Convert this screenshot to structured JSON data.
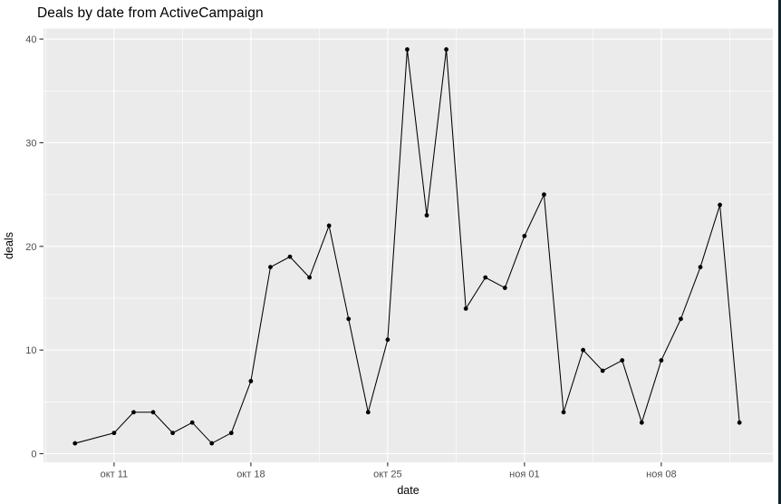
{
  "title": "Deals by date from ActiveCampaign",
  "chart_data": {
    "type": "line",
    "title": "Deals by date from ActiveCampaign",
    "xlabel": "date",
    "ylabel": "deals",
    "legend": "none",
    "grid": true,
    "ylim": [
      0,
      40
    ],
    "y_ticks": [
      0,
      10,
      20,
      30,
      40
    ],
    "y_minor_ticks": [
      5,
      15,
      25,
      35
    ],
    "x_ticks": [
      {
        "label": "окт 11",
        "day": 2
      },
      {
        "label": "окт 18",
        "day": 9
      },
      {
        "label": "окт 25",
        "day": 16
      },
      {
        "label": "ноя 01",
        "day": 23
      },
      {
        "label": "ноя 08",
        "day": 30
      }
    ],
    "points": [
      {
        "date": "окт 09",
        "day": 0,
        "value": 1
      },
      {
        "date": "окт 11",
        "day": 2,
        "value": 2
      },
      {
        "date": "окт 12",
        "day": 3,
        "value": 4
      },
      {
        "date": "окт 13",
        "day": 4,
        "value": 4
      },
      {
        "date": "окт 14",
        "day": 5,
        "value": 2
      },
      {
        "date": "окт 15",
        "day": 6,
        "value": 3
      },
      {
        "date": "окт 16",
        "day": 7,
        "value": 1
      },
      {
        "date": "окт 17",
        "day": 8,
        "value": 2
      },
      {
        "date": "окт 18",
        "day": 9,
        "value": 7
      },
      {
        "date": "окт 19",
        "day": 10,
        "value": 18
      },
      {
        "date": "окт 20",
        "day": 11,
        "value": 19
      },
      {
        "date": "окт 21",
        "day": 12,
        "value": 17
      },
      {
        "date": "окт 22",
        "day": 13,
        "value": 22
      },
      {
        "date": "окт 23",
        "day": 14,
        "value": 13
      },
      {
        "date": "окт 24",
        "day": 15,
        "value": 4
      },
      {
        "date": "окт 25",
        "day": 16,
        "value": 11
      },
      {
        "date": "окт 26",
        "day": 17,
        "value": 39
      },
      {
        "date": "окт 27",
        "day": 18,
        "value": 23
      },
      {
        "date": "окт 28",
        "day": 19,
        "value": 39
      },
      {
        "date": "окт 29",
        "day": 20,
        "value": 14
      },
      {
        "date": "окт 30",
        "day": 21,
        "value": 17
      },
      {
        "date": "окт 31",
        "day": 22,
        "value": 16
      },
      {
        "date": "ноя 01",
        "day": 23,
        "value": 21
      },
      {
        "date": "ноя 02",
        "day": 24,
        "value": 25
      },
      {
        "date": "ноя 03",
        "day": 25,
        "value": 4
      },
      {
        "date": "ноя 04",
        "day": 26,
        "value": 10
      },
      {
        "date": "ноя 05",
        "day": 27,
        "value": 8
      },
      {
        "date": "ноя 06",
        "day": 28,
        "value": 9
      },
      {
        "date": "ноя 07",
        "day": 29,
        "value": 3
      },
      {
        "date": "ноя 08",
        "day": 30,
        "value": 9
      },
      {
        "date": "ноя 09",
        "day": 31,
        "value": 13
      },
      {
        "date": "ноя 10",
        "day": 32,
        "value": 18
      },
      {
        "date": "ноя 11",
        "day": 33,
        "value": 24
      },
      {
        "date": "ноя 12",
        "day": 34,
        "value": 3
      }
    ]
  },
  "colors": {
    "panel_background": "#EBEBEB",
    "gridline": "#FFFFFF",
    "line": "#000000",
    "point": "#000000",
    "tick_mark": "#333333",
    "tick_label": "#4D4D4D",
    "axis_title": "#000000",
    "window_border": "#10222C"
  }
}
